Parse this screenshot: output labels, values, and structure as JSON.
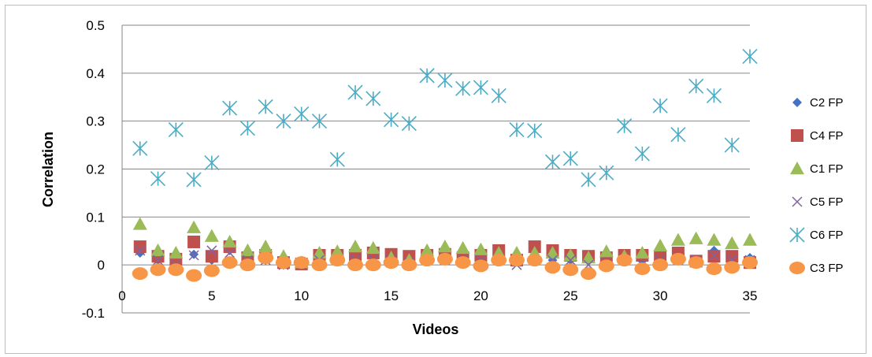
{
  "chart_data": {
    "type": "scatter",
    "title": "",
    "xlabel": "Videos",
    "ylabel": "Correlation",
    "xlim": [
      0,
      35
    ],
    "ylim": [
      -0.1,
      0.5
    ],
    "x_ticks": [
      "0",
      "5",
      "10",
      "15",
      "20",
      "25",
      "30",
      "35"
    ],
    "y_ticks": [
      "-0.1",
      "0",
      "0.1",
      "0.2",
      "0.3",
      "0.4",
      "0.5"
    ],
    "grid": "horizontal",
    "legend_position": "right",
    "x": [
      1,
      2,
      3,
      4,
      5,
      6,
      7,
      8,
      9,
      10,
      11,
      12,
      13,
      14,
      15,
      16,
      17,
      18,
      19,
      20,
      21,
      22,
      23,
      24,
      25,
      26,
      27,
      28,
      29,
      30,
      31,
      32,
      33,
      34,
      35
    ],
    "series": [
      {
        "name": "C2 FP",
        "marker": "diamond",
        "color": "#4472c4",
        "values": [
          0.025,
          0.01,
          0.01,
          0.022,
          0.01,
          0.03,
          0.01,
          0.01,
          0.0,
          0.0,
          0.01,
          0.01,
          0.01,
          0.015,
          0.01,
          0.01,
          0.01,
          0.01,
          0.01,
          0.01,
          0.01,
          0.01,
          0.01,
          0.01,
          0.01,
          0.01,
          0.01,
          0.01,
          0.01,
          0.01,
          0.01,
          0.01,
          0.03,
          0.01,
          0.015
        ]
      },
      {
        "name": "C4 FP",
        "marker": "square",
        "color": "#c0504d",
        "values": [
          0.038,
          0.018,
          0.012,
          0.048,
          0.018,
          0.038,
          0.015,
          0.02,
          0.005,
          0.002,
          0.02,
          0.02,
          0.02,
          0.025,
          0.022,
          0.018,
          0.02,
          0.022,
          0.015,
          0.02,
          0.03,
          0.01,
          0.038,
          0.03,
          0.02,
          0.018,
          0.015,
          0.02,
          0.02,
          0.015,
          0.025,
          0.008,
          0.018,
          0.018,
          0.005
        ]
      },
      {
        "name": "C1 FP",
        "marker": "triangle",
        "color": "#9bbb59",
        "values": [
          0.085,
          0.03,
          0.025,
          0.078,
          0.06,
          0.048,
          0.03,
          0.038,
          0.018,
          0.005,
          0.025,
          0.028,
          0.038,
          0.035,
          0.015,
          0.01,
          0.03,
          0.038,
          0.035,
          0.032,
          0.025,
          0.025,
          0.025,
          0.025,
          0.02,
          0.015,
          0.028,
          0.018,
          0.025,
          0.04,
          0.052,
          0.055,
          0.052,
          0.045,
          0.052
        ]
      },
      {
        "name": "C5 FP",
        "marker": "x",
        "color": "#8064a2",
        "values": [
          0.03,
          0.01,
          0.0,
          0.02,
          0.03,
          0.025,
          0.01,
          0.01,
          0.0,
          0.0,
          0.01,
          0.01,
          0.01,
          0.01,
          0.01,
          0.005,
          0.01,
          0.01,
          0.01,
          0.01,
          0.01,
          0.0,
          0.01,
          0.01,
          0.01,
          0.0,
          0.005,
          0.01,
          0.0,
          0.01,
          0.01,
          0.01,
          0.02,
          0.01,
          0.01
        ]
      },
      {
        "name": "C6 FP",
        "marker": "star",
        "color": "#4bacc6",
        "values": [
          0.243,
          0.18,
          0.282,
          0.178,
          0.213,
          0.327,
          0.285,
          0.33,
          0.3,
          0.315,
          0.3,
          0.22,
          0.36,
          0.347,
          0.303,
          0.295,
          0.395,
          0.385,
          0.368,
          0.37,
          0.353,
          0.282,
          0.28,
          0.215,
          0.222,
          0.178,
          0.192,
          0.29,
          0.232,
          0.332,
          0.272,
          0.373,
          0.353,
          0.25,
          0.435
        ]
      },
      {
        "name": "C3 FP",
        "marker": "circle",
        "color": "#f79646",
        "values": [
          -0.018,
          -0.01,
          -0.01,
          -0.022,
          -0.012,
          0.005,
          0.0,
          0.015,
          0.005,
          0.005,
          0.0,
          0.01,
          0.0,
          0.0,
          0.005,
          0.0,
          0.01,
          0.012,
          0.005,
          -0.002,
          0.01,
          0.01,
          0.01,
          -0.005,
          -0.01,
          -0.018,
          -0.002,
          0.01,
          -0.008,
          0.0,
          0.012,
          0.005,
          -0.008,
          -0.005,
          0.005
        ]
      }
    ]
  }
}
